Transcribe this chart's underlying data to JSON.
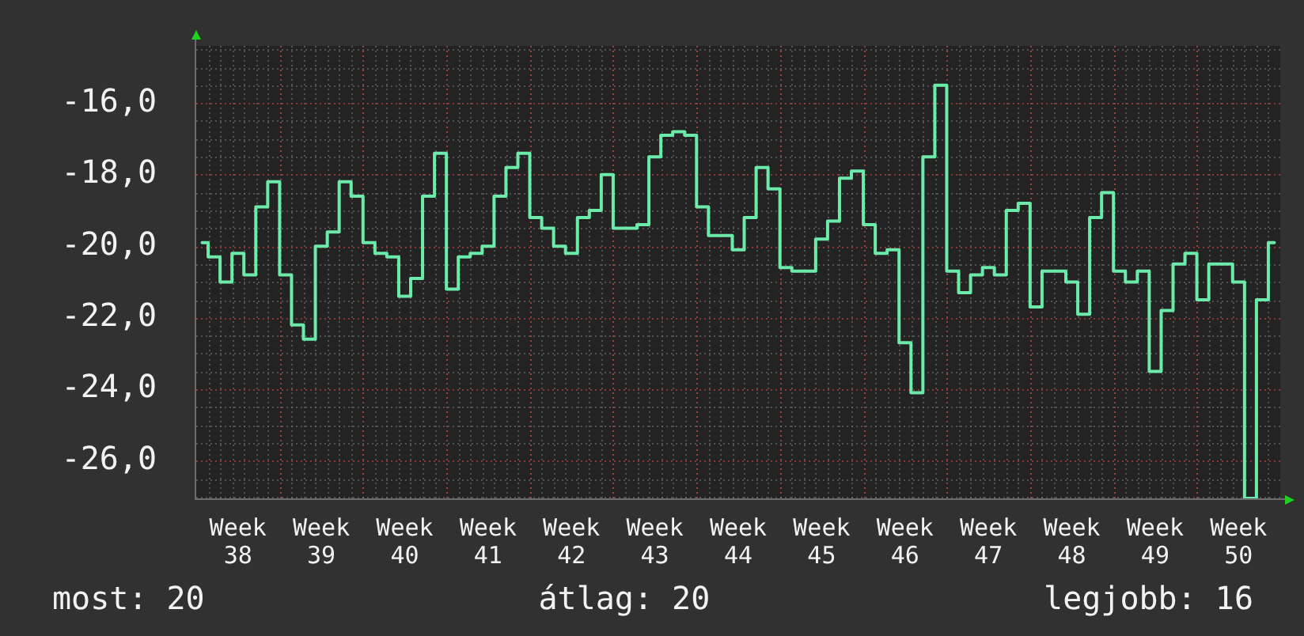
{
  "chart_data": {
    "type": "step",
    "color": "#6ceaa9",
    "marker": "none",
    "grid": true,
    "categories": [
      null,
      null,
      null,
      "Week 38",
      null,
      null,
      null,
      null,
      null,
      null,
      "Week 39",
      null,
      null,
      null,
      null,
      null,
      null,
      "Week 40",
      null,
      null,
      null,
      null,
      null,
      null,
      "Week 41",
      null,
      null,
      null,
      null,
      null,
      null,
      "Week 42",
      null,
      null,
      null,
      null,
      null,
      null,
      "Week 43",
      null,
      null,
      null,
      null,
      null,
      null,
      "Week 44",
      null,
      null,
      null,
      null,
      null,
      null,
      "Week 45",
      null,
      null,
      null,
      null,
      null,
      null,
      "Week 46",
      null,
      null,
      null,
      null,
      null,
      null,
      "Week 47",
      null,
      null,
      null,
      null,
      null,
      null,
      "Week 48",
      null,
      null,
      null,
      null,
      null,
      null,
      "Week 49",
      null,
      null,
      null,
      null,
      null,
      null,
      "Week 50",
      null,
      null,
      null
    ],
    "values": [
      -19.9,
      -20.3,
      -21.0,
      -20.2,
      -20.8,
      -18.9,
      -18.2,
      -20.8,
      -22.2,
      -22.6,
      -20.0,
      -19.6,
      -18.2,
      -18.6,
      -19.9,
      -20.2,
      -20.3,
      -21.4,
      -20.9,
      -18.6,
      -17.4,
      -21.2,
      -20.3,
      -20.2,
      -20.0,
      -18.6,
      -17.8,
      -17.4,
      -19.2,
      -19.5,
      -20.0,
      -20.2,
      -19.2,
      -19.0,
      -18.0,
      -19.5,
      -19.5,
      -19.4,
      -17.5,
      -16.9,
      -16.8,
      -16.9,
      -18.9,
      -19.7,
      -19.7,
      -20.1,
      -19.2,
      -17.8,
      -18.4,
      -20.6,
      -20.7,
      -20.7,
      -19.8,
      -19.3,
      -18.1,
      -17.9,
      -19.4,
      -20.2,
      -20.1,
      -22.7,
      -24.1,
      -17.5,
      -15.5,
      -20.7,
      -21.3,
      -20.8,
      -20.6,
      -20.8,
      -19.0,
      -18.8,
      -21.7,
      -20.7,
      -20.7,
      -21.0,
      -21.9,
      -19.2,
      -18.5,
      -20.7,
      -21.0,
      -20.7,
      -23.5,
      -21.8,
      -20.5,
      -20.2,
      -21.5,
      -20.5,
      -20.5,
      -21.0,
      -27.05,
      -21.5,
      -19.9
    ],
    "ylim": [
      -27.05,
      -14.4
    ],
    "yticks": [
      {
        "value": -27,
        "label": null
      },
      {
        "value": -26.5,
        "label": null
      },
      {
        "value": -26,
        "label": "-26,0"
      },
      {
        "value": -25.5,
        "label": null
      },
      {
        "value": -25,
        "label": null
      },
      {
        "value": -24.5,
        "label": null
      },
      {
        "value": -24,
        "label": "-24,0"
      },
      {
        "value": -23.5,
        "label": null
      },
      {
        "value": -23,
        "label": null
      },
      {
        "value": -22.5,
        "label": null
      },
      {
        "value": -22,
        "label": "-22,0"
      },
      {
        "value": -21.5,
        "label": null
      },
      {
        "value": -21,
        "label": null
      },
      {
        "value": -20.5,
        "label": null
      },
      {
        "value": -20,
        "label": "-20,0"
      },
      {
        "value": -19.5,
        "label": null
      },
      {
        "value": -19,
        "label": null
      },
      {
        "value": -18.5,
        "label": null
      },
      {
        "value": -18,
        "label": "-18,0"
      },
      {
        "value": -17.5,
        "label": null
      },
      {
        "value": -17,
        "label": null
      },
      {
        "value": -16.5,
        "label": null
      },
      {
        "value": -16,
        "label": "-16,0"
      },
      {
        "value": -15.5,
        "label": null
      },
      {
        "value": -15,
        "label": null
      },
      {
        "value": -14.5,
        "label": null
      }
    ],
    "annotations": [
      "most: 20",
      "átlag: 20",
      "legjobb: 16"
    ]
  }
}
